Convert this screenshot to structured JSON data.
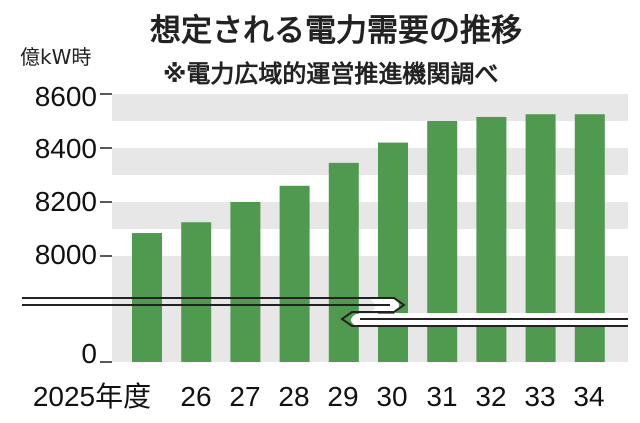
{
  "chart_data": {
    "type": "bar",
    "title": "想定される電力需要の推移",
    "subtitle": "※電力広域的運営推進機関調べ",
    "ylabel": "億kW時",
    "categories": [
      "2025年度",
      "26",
      "27",
      "28",
      "29",
      "30",
      "31",
      "32",
      "33",
      "34"
    ],
    "values": [
      8085,
      8125,
      8200,
      8260,
      8345,
      8420,
      8500,
      8515,
      8525,
      8525
    ],
    "ylim": [
      8000,
      8600
    ],
    "yticks": [
      "8600",
      "8400",
      "8200",
      "8000",
      "0"
    ],
    "axis_break": true,
    "grid": "alternating bands",
    "colors": {
      "bar": "#4f9a4f",
      "band": "#e7e7e7",
      "background": "#ffffff"
    }
  }
}
